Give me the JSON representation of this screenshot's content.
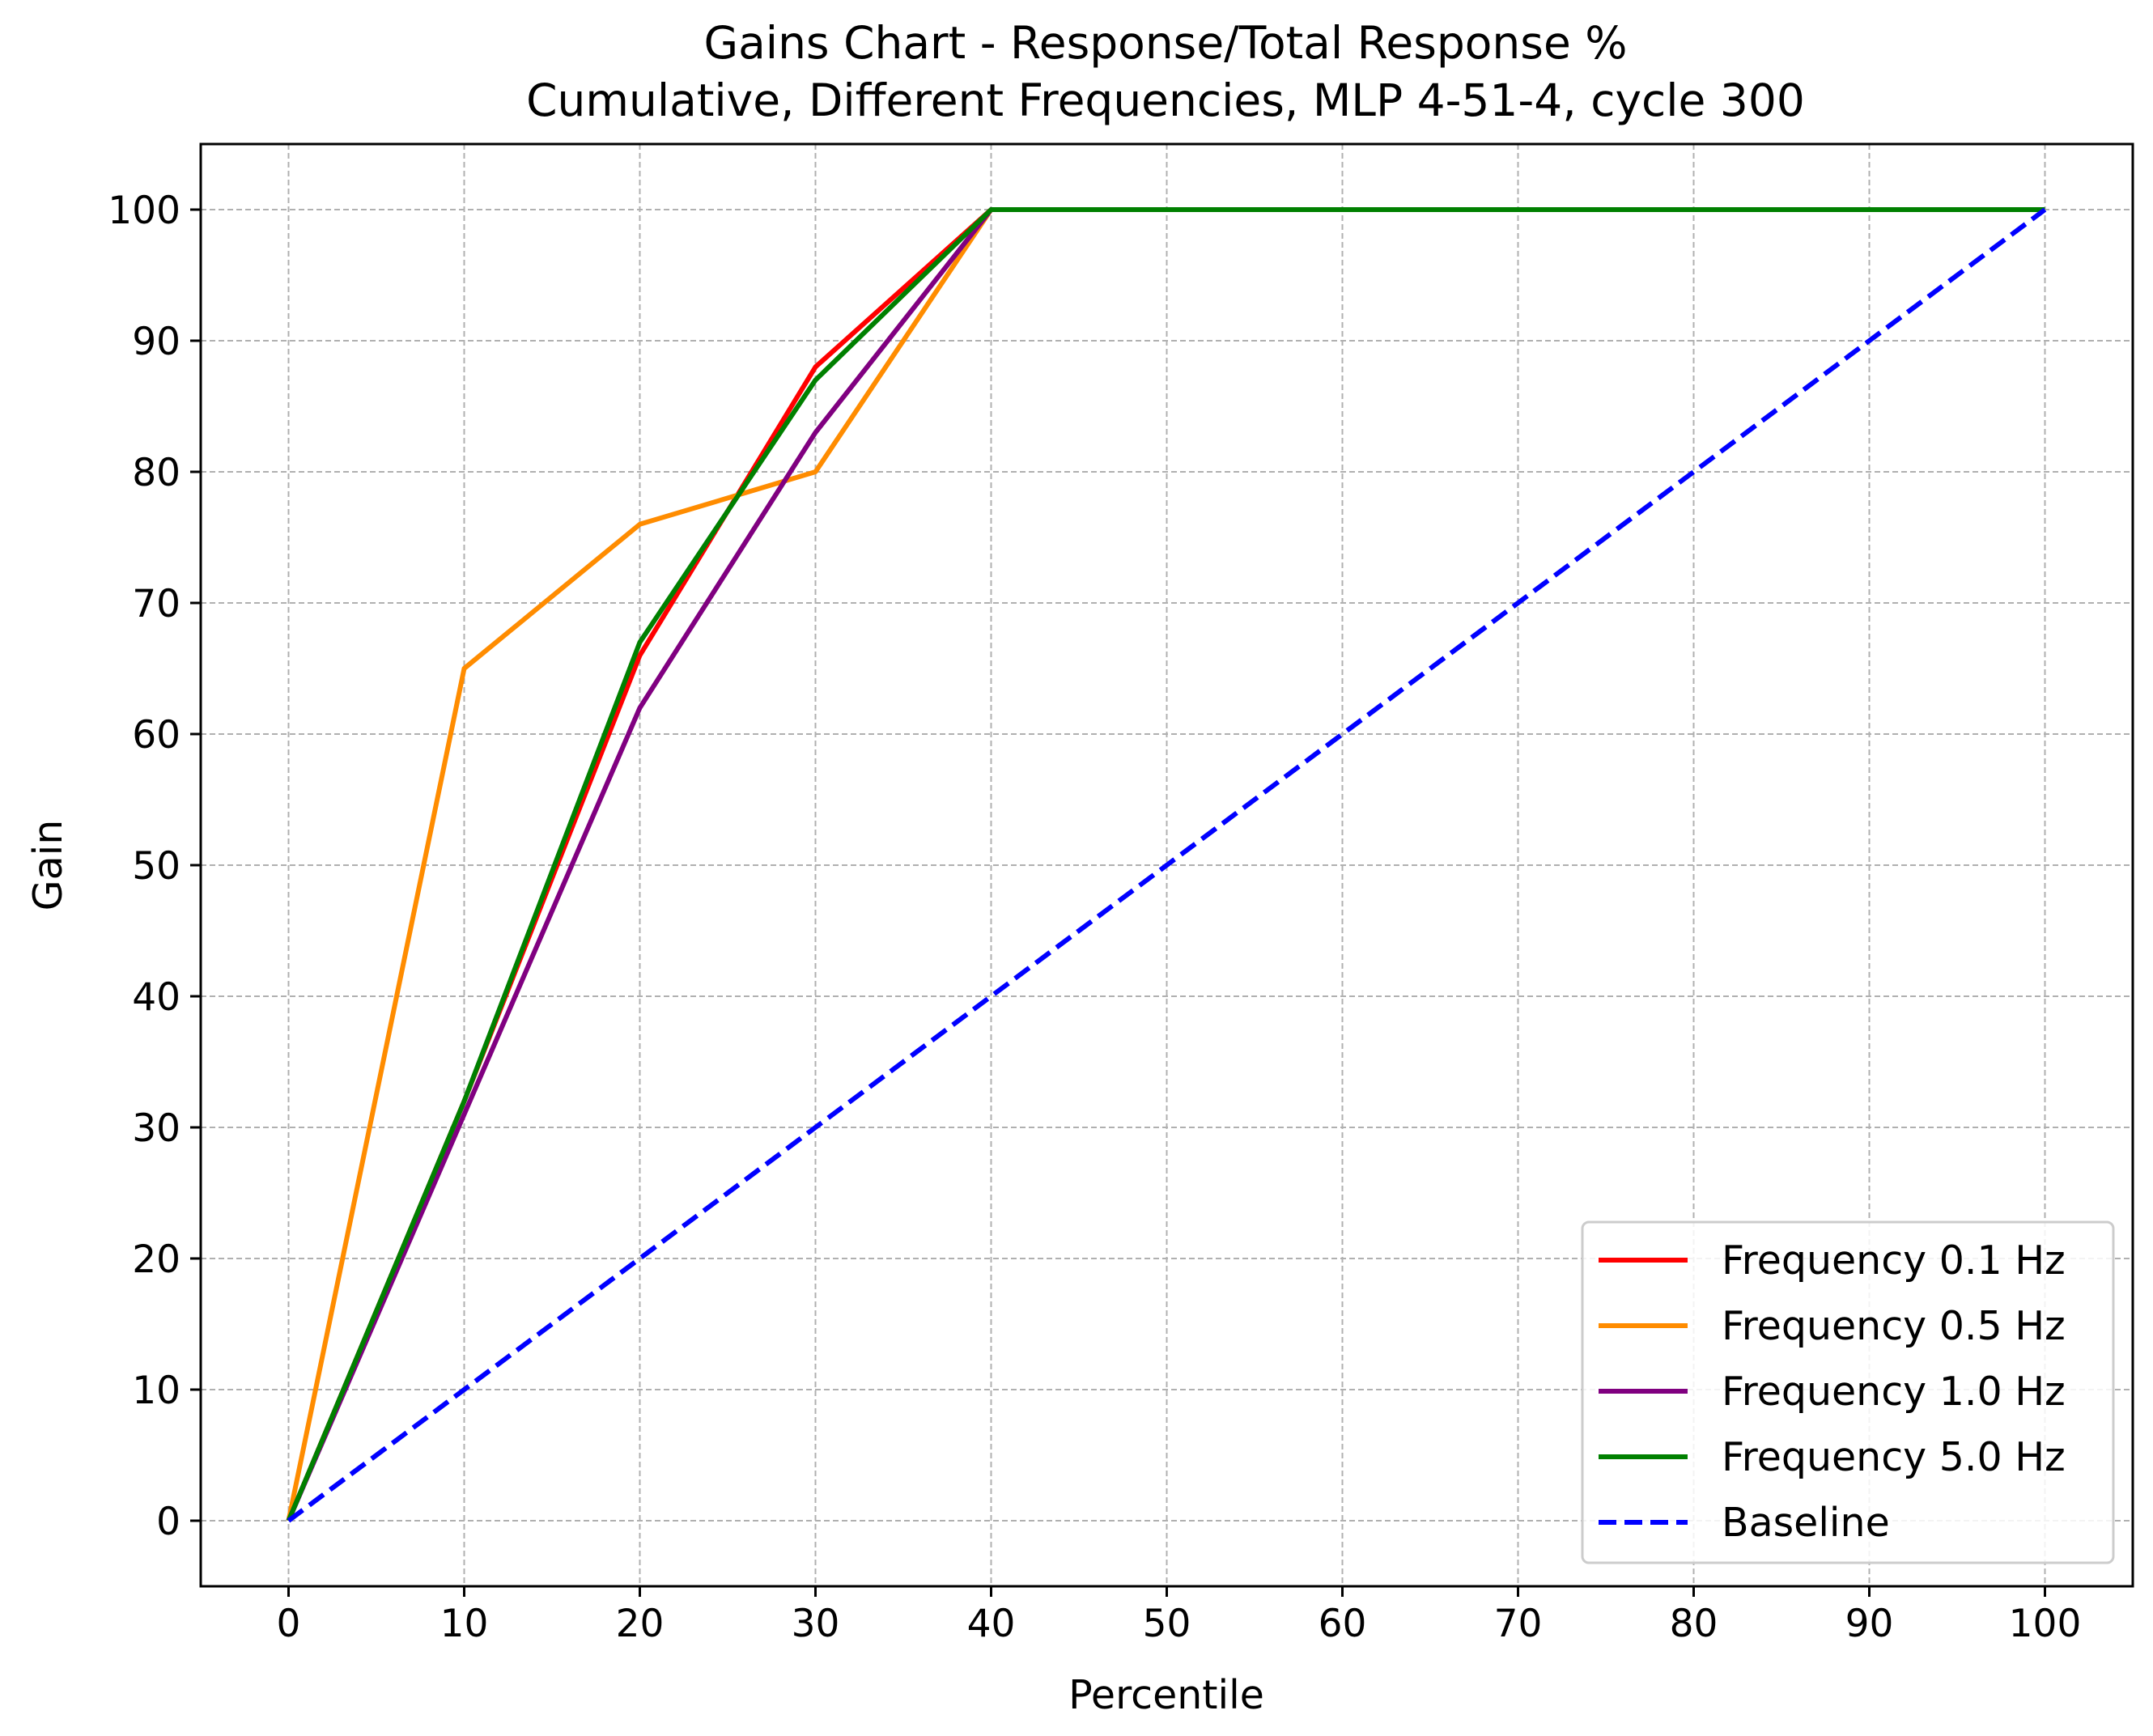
{
  "chart_data": {
    "type": "line",
    "title_lines": [
      "Gains Chart - Response/Total Response %",
      "Cumulative, Different Frequencies, MLP 4-51-4, cycle 300"
    ],
    "xlabel": "Percentile",
    "ylabel": "Gain",
    "xlim": [
      -5,
      105
    ],
    "ylim": [
      -5,
      105
    ],
    "xticks": [
      0,
      10,
      20,
      30,
      40,
      50,
      60,
      70,
      80,
      90,
      100
    ],
    "yticks": [
      0,
      10,
      20,
      30,
      40,
      50,
      60,
      70,
      80,
      90,
      100
    ],
    "grid": true,
    "legend_position": "lower-right",
    "series": [
      {
        "key": "freq-0-1",
        "name": "Frequency 0.1 Hz",
        "color": "#ff0000",
        "style": "solid",
        "x": [
          0,
          10,
          20,
          30,
          40,
          100
        ],
        "y": [
          0,
          32,
          66,
          88,
          100,
          100
        ]
      },
      {
        "key": "freq-0-5",
        "name": "Frequency 0.5 Hz",
        "color": "#ff8c00",
        "style": "solid",
        "x": [
          0,
          10,
          20,
          30,
          40,
          100
        ],
        "y": [
          0,
          65,
          76,
          80,
          100,
          100
        ]
      },
      {
        "key": "freq-1-0",
        "name": "Frequency 1.0 Hz",
        "color": "#800080",
        "style": "solid",
        "x": [
          0,
          10,
          20,
          30,
          40,
          100
        ],
        "y": [
          0,
          31,
          62,
          83,
          100,
          100
        ]
      },
      {
        "key": "freq-5-0",
        "name": "Frequency 5.0 Hz",
        "color": "#008000",
        "style": "solid",
        "x": [
          0,
          10,
          20,
          30,
          40,
          100
        ],
        "y": [
          0,
          32,
          67,
          87,
          100,
          100
        ]
      },
      {
        "key": "baseline",
        "name": "Baseline",
        "color": "#0000ff",
        "style": "dashed",
        "x": [
          0,
          100
        ],
        "y": [
          0,
          100
        ]
      }
    ]
  }
}
